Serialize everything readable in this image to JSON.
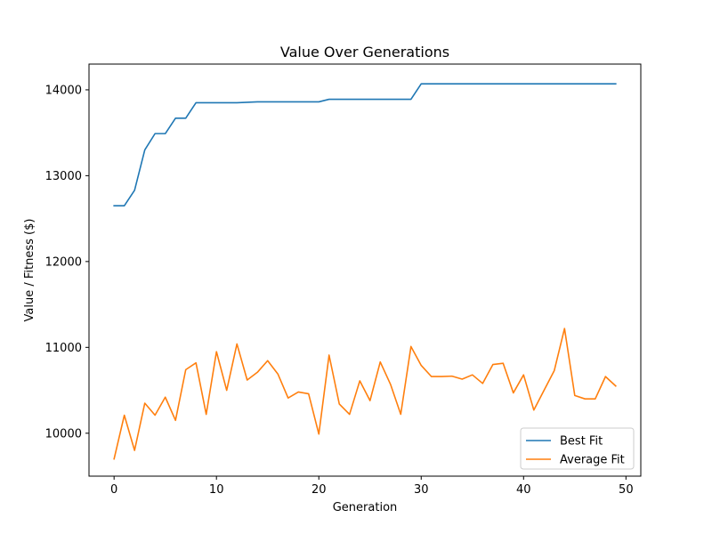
{
  "chart_data": {
    "type": "line",
    "title": "Value Over Generations",
    "xlabel": "Generation",
    "ylabel": "Value / Fitness ($)",
    "xlim": [
      -2.45,
      51.45
    ],
    "ylim": [
      9500,
      14300
    ],
    "xticks": [
      0,
      10,
      20,
      30,
      40,
      50
    ],
    "yticks": [
      10000,
      11000,
      12000,
      13000,
      14000
    ],
    "grid": false,
    "legend_position": "lower right",
    "x": [
      0,
      1,
      2,
      3,
      4,
      5,
      6,
      7,
      8,
      9,
      10,
      11,
      12,
      13,
      14,
      15,
      16,
      17,
      18,
      19,
      20,
      21,
      22,
      23,
      24,
      25,
      26,
      27,
      28,
      29,
      30,
      31,
      32,
      33,
      34,
      35,
      36,
      37,
      38,
      39,
      40,
      41,
      42,
      43,
      44,
      45,
      46,
      47,
      48,
      49
    ],
    "series": [
      {
        "name": "Best Fit",
        "color": "#1f77b4",
        "values": [
          12650,
          12650,
          12830,
          13300,
          13490,
          13490,
          13670,
          13670,
          13850,
          13850,
          13850,
          13850,
          13850,
          13855,
          13860,
          13860,
          13860,
          13860,
          13860,
          13860,
          13860,
          13890,
          13890,
          13890,
          13890,
          13890,
          13890,
          13890,
          13890,
          13890,
          14070,
          14070,
          14070,
          14070,
          14070,
          14070,
          14070,
          14070,
          14070,
          14070,
          14070,
          14070,
          14070,
          14070,
          14070,
          14070,
          14070,
          14070,
          14070,
          14070
        ]
      },
      {
        "name": "Average Fit",
        "color": "#ff7f0e",
        "values": [
          9700,
          10210,
          9800,
          10350,
          10210,
          10420,
          10150,
          10740,
          10820,
          10220,
          10950,
          10500,
          11040,
          10620,
          10710,
          10845,
          10690,
          10410,
          10480,
          10460,
          9990,
          10910,
          10340,
          10220,
          10610,
          10380,
          10830,
          10570,
          10220,
          11010,
          10790,
          10660,
          10660,
          10665,
          10630,
          10680,
          10580,
          10800,
          10815,
          10470,
          10680,
          10270,
          10500,
          10730,
          11220,
          10440,
          10400,
          10400,
          10660,
          10550
        ]
      }
    ]
  }
}
